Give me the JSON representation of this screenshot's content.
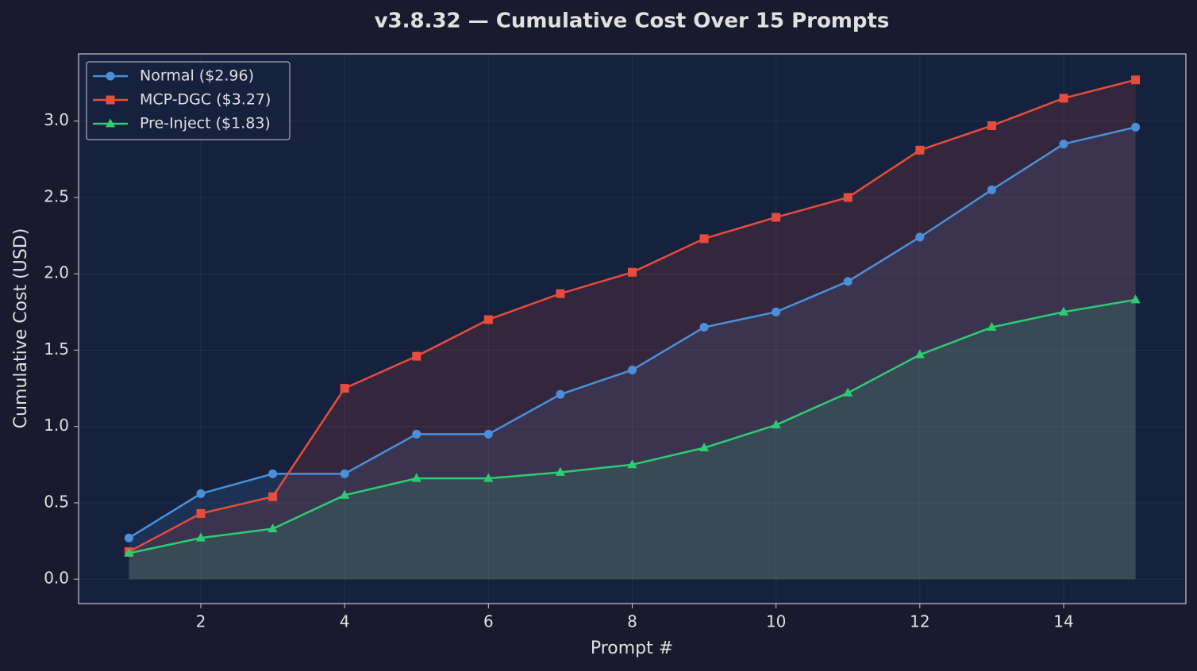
{
  "chart_data": {
    "type": "line",
    "title": "v3.8.32 — Cumulative Cost Over 15 Prompts",
    "x_label": "Prompt #",
    "y_label": "Cumulative Cost (USD)",
    "x": [
      1,
      2,
      3,
      4,
      5,
      6,
      7,
      8,
      9,
      10,
      11,
      12,
      13,
      14,
      15
    ],
    "series": [
      {
        "name": "Normal ($2.96)",
        "color": "#4a90d9",
        "marker": "circle",
        "values": [
          0.27,
          0.56,
          0.69,
          0.69,
          0.95,
          0.95,
          1.21,
          1.37,
          1.65,
          1.75,
          1.95,
          2.24,
          2.55,
          2.85,
          2.96
        ]
      },
      {
        "name": "MCP-DGC ($3.27)",
        "color": "#e74c3c",
        "marker": "square",
        "values": [
          0.18,
          0.43,
          0.54,
          1.25,
          1.46,
          1.7,
          1.87,
          2.01,
          2.23,
          2.37,
          2.5,
          2.81,
          2.97,
          3.15,
          3.27
        ]
      },
      {
        "name": "Pre-Inject ($1.83)",
        "color": "#2ecc71",
        "marker": "triangle",
        "values": [
          0.17,
          0.27,
          0.33,
          0.55,
          0.66,
          0.66,
          0.7,
          0.75,
          0.86,
          1.01,
          1.22,
          1.47,
          1.65,
          1.75,
          1.83
        ]
      }
    ],
    "xlim": [
      0.3,
      15.7
    ],
    "ylim": [
      -0.16,
      3.44
    ],
    "xticks": [
      2,
      4,
      6,
      8,
      10,
      12,
      14
    ],
    "yticks": [
      {
        "value": 0,
        "label": "0.0"
      },
      0.5,
      {
        "value": 1,
        "label": "1.0"
      },
      1.5,
      {
        "value": 2,
        "label": "2.0"
      },
      2.5,
      {
        "value": 3,
        "label": "3.0"
      }
    ],
    "grid": true,
    "fill_area": true,
    "legend": "upper left"
  }
}
